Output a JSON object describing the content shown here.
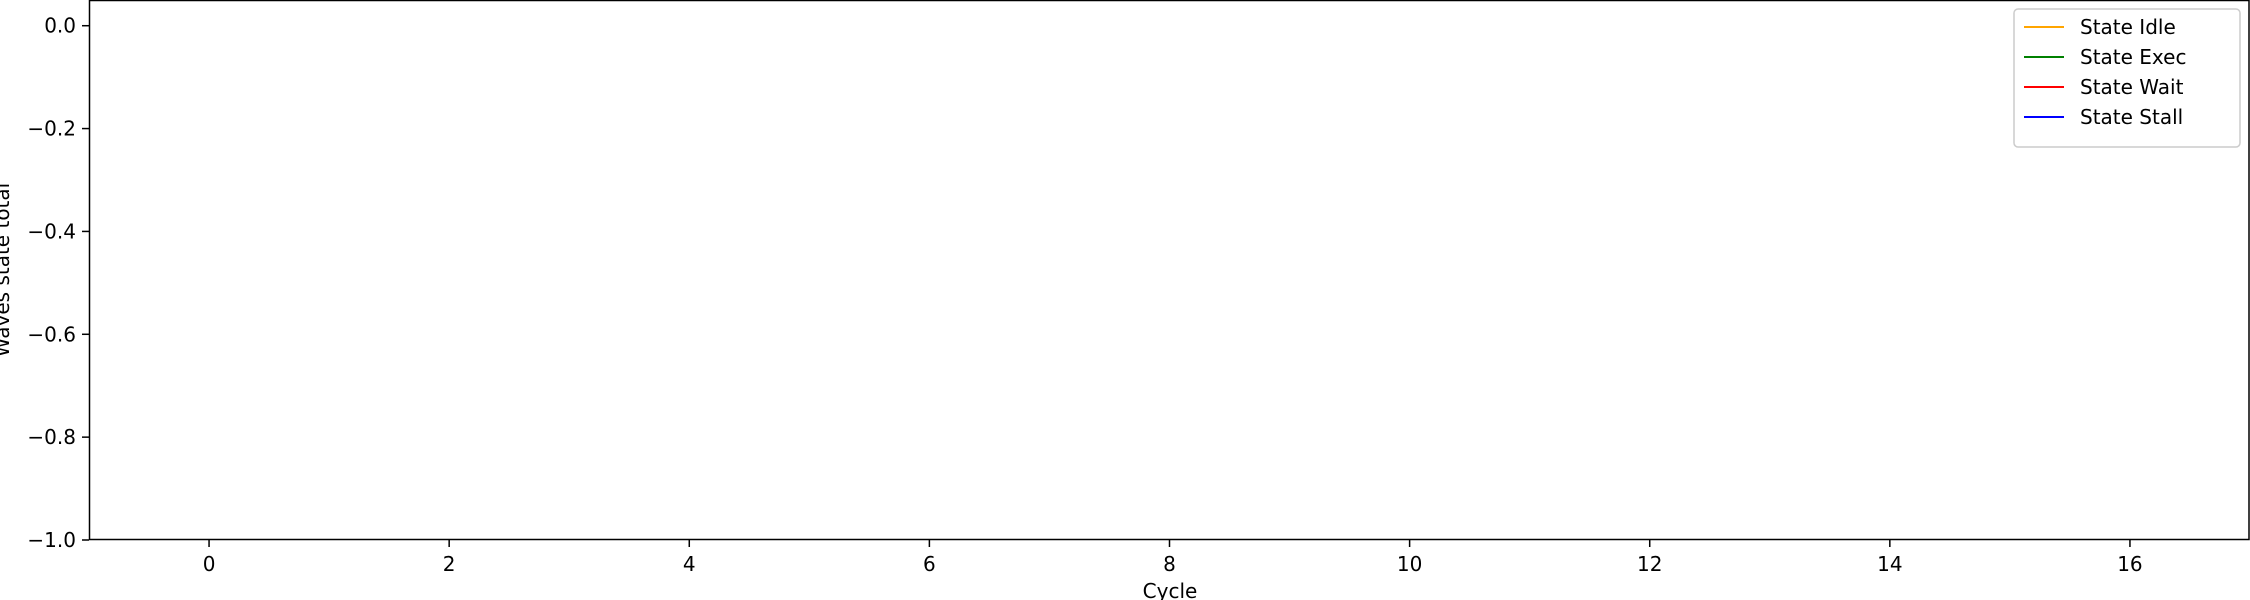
{
  "chart_data": {
    "type": "line",
    "title": "",
    "xlabel": "Cycle",
    "ylabel": "Waves state total",
    "xlim": [
      -1,
      17
    ],
    "ylim": [
      -1.0,
      0.05
    ],
    "xticks": [
      0,
      2,
      4,
      6,
      8,
      10,
      12,
      14,
      16
    ],
    "xtick_labels": [
      "0",
      "2",
      "4",
      "6",
      "8",
      "10",
      "12",
      "14",
      "16"
    ],
    "yticks": [
      0.0,
      -0.2,
      -0.4,
      -0.6,
      -0.8,
      -1.0
    ],
    "ytick_labels": [
      "0.0",
      "−0.2",
      "−0.4",
      "−0.6",
      "−0.8",
      "−1.0"
    ],
    "grid": false,
    "legend": "top-right",
    "series": [
      {
        "name": "State Idle",
        "color": "#ffa500",
        "x": [],
        "y": []
      },
      {
        "name": "State Exec",
        "color": "#008000",
        "x": [],
        "y": []
      },
      {
        "name": "State Wait",
        "color": "#ff0000",
        "x": [],
        "y": []
      },
      {
        "name": "State Stall",
        "color": "#0000ff",
        "x": [],
        "y": []
      }
    ]
  }
}
